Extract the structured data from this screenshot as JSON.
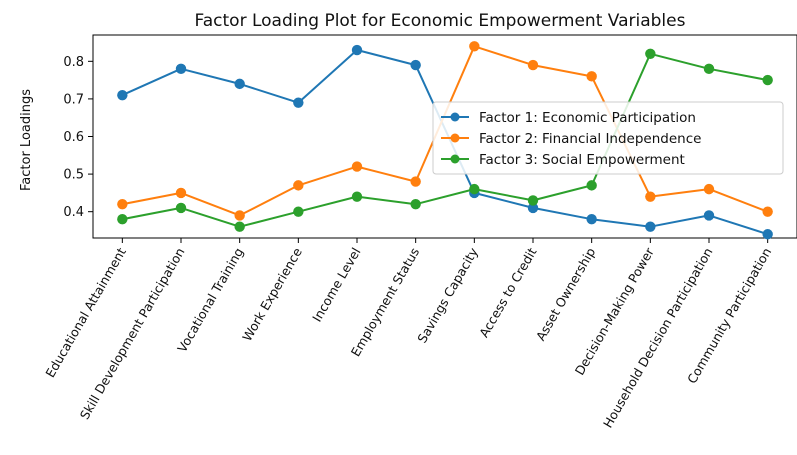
{
  "chart_data": {
    "type": "line",
    "title": "Factor Loading Plot for Economic Empowerment Variables",
    "ylabel": "Factor Loadings",
    "xlabel": "",
    "ylim": [
      0.33,
      0.87
    ],
    "yticks": [
      0.4,
      0.5,
      0.6,
      0.7,
      0.8
    ],
    "grid": false,
    "legend_position": "center-right",
    "categories": [
      "Educational Attainment",
      "Skill Development Participation",
      "Vocational Training",
      "Work Experience",
      "Income Level",
      "Employment Status",
      "Savings Capacity",
      "Access to Credit",
      "Asset Ownership",
      "Decision-Making Power",
      "Household Decision Participation",
      "Community Participation"
    ],
    "series": [
      {
        "name": "Factor 1: Economic Participation",
        "color": "#1f77b4",
        "values": [
          0.71,
          0.78,
          0.74,
          0.69,
          0.83,
          0.79,
          0.45,
          0.41,
          0.38,
          0.36,
          0.39,
          0.34
        ]
      },
      {
        "name": "Factor 2: Financial Independence",
        "color": "#ff7f0e",
        "values": [
          0.42,
          0.45,
          0.39,
          0.47,
          0.52,
          0.48,
          0.84,
          0.79,
          0.76,
          0.44,
          0.46,
          0.4
        ]
      },
      {
        "name": "Factor 3: Social Empowerment",
        "color": "#2ca02c",
        "values": [
          0.38,
          0.41,
          0.36,
          0.4,
          0.44,
          0.42,
          0.46,
          0.43,
          0.47,
          0.82,
          0.78,
          0.75
        ]
      }
    ]
  }
}
